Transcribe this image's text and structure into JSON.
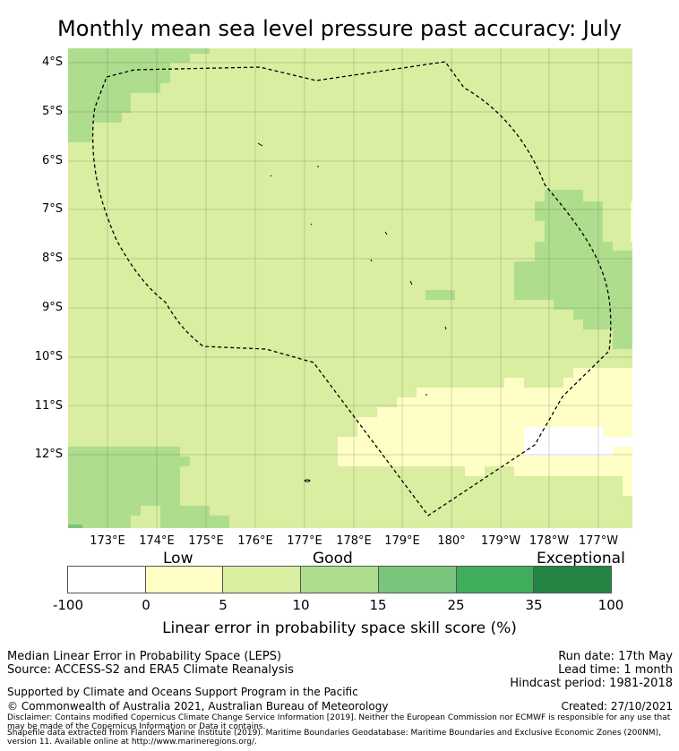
{
  "title": "Monthly mean sea level pressure past accuracy: July",
  "map": {
    "lat_labels": [
      "4°S",
      "5°S",
      "6°S",
      "7°S",
      "8°S",
      "9°S",
      "10°S",
      "11°S",
      "12°S"
    ],
    "lon_labels": [
      "173°E",
      "174°E",
      "175°E",
      "176°E",
      "177°E",
      "178°E",
      "179°E",
      "180°",
      "179°W",
      "178°W",
      "177°W"
    ],
    "colors": {
      "white": "#ffffff",
      "light_yellow": "#fefec6",
      "pale_green": "#d9eea1",
      "light_green": "#afdd8e",
      "medium_green": "#78c57b",
      "green": "#40ad5b",
      "dark_green": "#238443",
      "boundary": "#000000"
    }
  },
  "colorbar": {
    "categories": [
      "Low",
      "Good",
      "Exceptional"
    ],
    "ticks": [
      "-100",
      "0",
      "5",
      "10",
      "15",
      "25",
      "35",
      "100"
    ],
    "label": "Linear error in probability space skill score (%)"
  },
  "footer": {
    "left_line1": "Median Linear Error in Probability Space (LEPS)",
    "left_line2": "Source: ACCESS-S2 and ERA5 Climate Reanalysis",
    "right_line1": "Run date: 17th May",
    "right_line2": "Lead time: 1 month",
    "right_line3": "Hindcast period: 1981-2018",
    "supported": "Supported by Climate and Oceans Support Program in the Pacific",
    "copyright": "© Commonwealth of Australia 2021, Australian Bureau of Meteorology",
    "created": "Created: 27/10/2021",
    "disclaimer": "Disclaimer: Contains modified Copernicus Climate Change Service Information [2019]. Neither the European Commission nor ECMWF is responsible for any use that may be made of the Copernicus Information or Data it contains.",
    "shapefile": "Shapefile data extracted from Flanders Marine Institute (2019). Maritime Boundaries Geodatabase: Maritime Boundaries and Exclusive Economic Zones (200NM), version 11. Available online at http://www.marineregions.org/."
  }
}
